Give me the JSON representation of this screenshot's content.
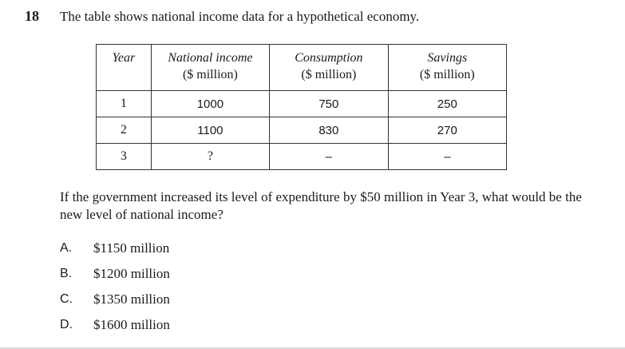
{
  "question": {
    "number": "18",
    "stem": "The table shows national income data for a hypothetical economy.",
    "prompt": "If the government increased its level of expenditure by $50 million in Year 3, what would be the new level of national income?"
  },
  "table": {
    "headers": [
      {
        "title": "Year",
        "unit": ""
      },
      {
        "title": "National income",
        "unit": "($ million)"
      },
      {
        "title": "Consumption",
        "unit": "($ million)"
      },
      {
        "title": "Savings",
        "unit": "($ million)"
      }
    ],
    "rows": [
      [
        "1",
        "1000",
        "750",
        "250"
      ],
      [
        "2",
        "1100",
        "830",
        "270"
      ],
      [
        "3",
        "?",
        "–",
        "–"
      ]
    ]
  },
  "options": [
    {
      "letter": "A.",
      "text": "$1150 million"
    },
    {
      "letter": "B.",
      "text": "$1200 million"
    },
    {
      "letter": "C.",
      "text": "$1350 million"
    },
    {
      "letter": "D.",
      "text": "$1600 million"
    }
  ]
}
